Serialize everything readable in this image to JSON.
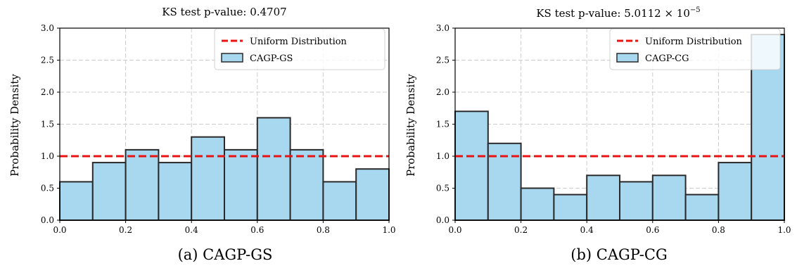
{
  "colors": {
    "bar_fill": "#a8d8ef",
    "bar_edge": "#2a2a2a",
    "uniform_line": "#ee1111",
    "grid": "#cccccc"
  },
  "chart_data": [
    {
      "type": "bar",
      "title": "KS test p-value: 0.4707",
      "ylabel": "Probability Density",
      "xlabel": "",
      "bin_edges": [
        0.0,
        0.1,
        0.2,
        0.3,
        0.4,
        0.5,
        0.6,
        0.7,
        0.8,
        0.9,
        1.0
      ],
      "values": [
        0.6,
        0.9,
        1.1,
        0.9,
        1.3,
        1.1,
        1.6,
        1.1,
        0.6,
        0.8
      ],
      "xlim": [
        0.0,
        1.0
      ],
      "ylim": [
        0.0,
        3.0
      ],
      "xticks": [
        "0.0",
        "0.2",
        "0.4",
        "0.6",
        "0.8",
        "1.0"
      ],
      "yticks": [
        "0.0",
        "0.5",
        "1.0",
        "1.5",
        "2.0",
        "2.5",
        "3.0"
      ],
      "reference_line": {
        "label": "Uniform Distribution",
        "y": 1.0,
        "style": "dashed"
      },
      "series": [
        {
          "name": "CAGP-GS",
          "values": [
            0.6,
            0.9,
            1.1,
            0.9,
            1.3,
            1.1,
            1.6,
            1.1,
            0.6,
            0.8
          ]
        }
      ],
      "legend": "top-right",
      "grid": true,
      "caption": "(a) CAGP-GS"
    },
    {
      "type": "bar",
      "title_prefix": "KS test p-value: 5.0112 × 10",
      "title_exponent": "−5",
      "ylabel": "Probability Density",
      "xlabel": "",
      "bin_edges": [
        0.0,
        0.1,
        0.2,
        0.3,
        0.4,
        0.5,
        0.6,
        0.7,
        0.8,
        0.9,
        1.0
      ],
      "values": [
        1.7,
        1.2,
        0.5,
        0.4,
        0.7,
        0.6,
        0.7,
        0.4,
        0.9,
        2.9
      ],
      "xlim": [
        0.0,
        1.0
      ],
      "ylim": [
        0.0,
        3.0
      ],
      "xticks": [
        "0.0",
        "0.2",
        "0.4",
        "0.6",
        "0.8",
        "1.0"
      ],
      "yticks": [
        "0.0",
        "0.5",
        "1.0",
        "1.5",
        "2.0",
        "2.5",
        "3.0"
      ],
      "reference_line": {
        "label": "Uniform Distribution",
        "y": 1.0,
        "style": "dashed"
      },
      "series": [
        {
          "name": "CAGP-CG",
          "values": [
            1.7,
            1.2,
            0.5,
            0.4,
            0.7,
            0.6,
            0.7,
            0.4,
            0.9,
            2.9
          ]
        }
      ],
      "legend": "top-right",
      "grid": true,
      "caption": "(b) CAGP-CG"
    }
  ]
}
